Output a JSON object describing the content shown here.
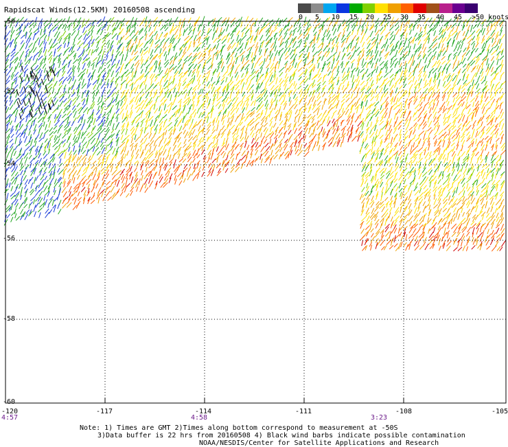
{
  "title": "Rapidscat Winds(12.5KM) 20160508 ascending",
  "legend": {
    "labels": [
      "0",
      "5",
      "10",
      "15",
      "20",
      "25",
      "30",
      "35",
      "40",
      "45",
      ">50 knots"
    ],
    "colors": [
      "#4a4a4a",
      "#8c8c8c",
      "#00a6f0",
      "#0a36e0",
      "#00aa00",
      "#7fd000",
      "#ffe000",
      "#f0a000",
      "#ff6000",
      "#e00000",
      "#a05018",
      "#b8208c",
      "#6a0090",
      "#3a0070"
    ]
  },
  "axes": {
    "lon_ticks": [
      "-120",
      "-117",
      "-114",
      "-111",
      "-108",
      "-105"
    ],
    "lat_ticks": [
      "-50",
      "-52",
      "-54",
      "-56",
      "-58",
      "-60"
    ]
  },
  "times": [
    "4:57",
    "4:58",
    "3:23"
  ],
  "notes": [
    "Note: 1) Times are GMT 2)Times along bottom correspond to measurement at -50S",
    "3)Data buffer is 22 hrs from 20160508 4) Black wind barbs indicate possible contamination",
    "NOAA/NESDIS/Center for Satellite Applications and Research"
  ]
}
